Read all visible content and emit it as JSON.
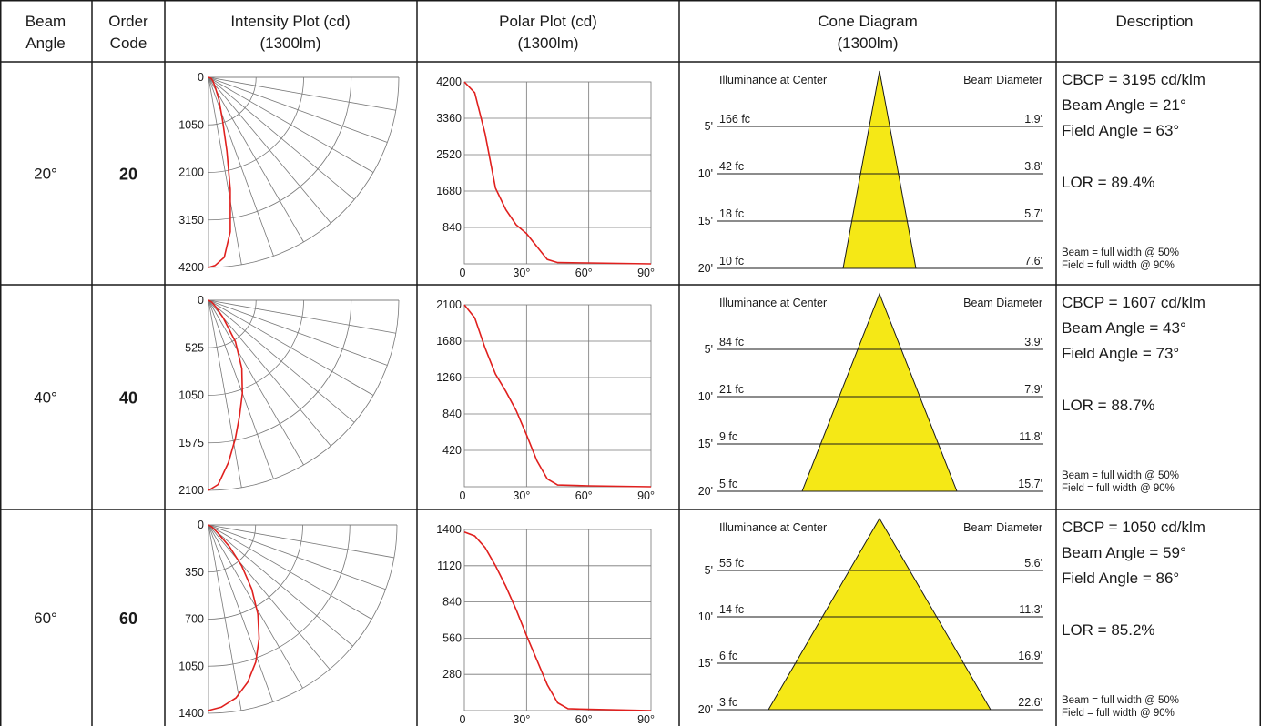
{
  "headers": {
    "beam_angle": [
      "Beam",
      "Angle"
    ],
    "order_code": [
      "Order",
      "Code"
    ],
    "intensity": [
      "Intensity Plot (cd)",
      "(1300lm)"
    ],
    "polar": [
      "Polar Plot (cd)",
      "(1300lm)"
    ],
    "cone": [
      "Cone Diagram",
      "(1300lm)"
    ],
    "description": [
      "Description"
    ]
  },
  "colors": {
    "curve": "#e0201e",
    "cone_fill": "#f5e816",
    "grid": "#777777",
    "border": "#1a1a1a"
  },
  "polar_x_ticks": [
    "0",
    "30°",
    "60°",
    "90°"
  ],
  "cone_headers": {
    "left": "Illuminance at Center",
    "right": "Beam Diameter"
  },
  "cone_distances": [
    "5'",
    "10'",
    "15'",
    "20'"
  ],
  "desc_notes": [
    "Beam = full width @ 50%",
    "Field = full width @ 90%"
  ],
  "rows": [
    {
      "beam_angle": "20°",
      "order_code": "20",
      "intensity_ticks": [
        "0",
        "1050",
        "2100",
        "3150",
        "4200"
      ],
      "polar_y_ticks": [
        "4200",
        "3360",
        "2520",
        "1680",
        "840"
      ],
      "cone_illuminance": [
        "166 fc",
        "42 fc",
        "18 fc",
        "10 fc"
      ],
      "cone_diameter": [
        "1.9'",
        "3.8'",
        "5.7'",
        "7.6'"
      ],
      "cbcp": "CBCP = 3195 cd/klm",
      "beam": "Beam Angle = 21°",
      "field": "Field Angle = 63°",
      "lor": "LOR = 89.4%"
    },
    {
      "beam_angle": "40°",
      "order_code": "40",
      "intensity_ticks": [
        "0",
        "525",
        "1050",
        "1575",
        "2100"
      ],
      "polar_y_ticks": [
        "2100",
        "1680",
        "1260",
        "840",
        "420"
      ],
      "cone_illuminance": [
        "84 fc",
        "21 fc",
        "9 fc",
        "5 fc"
      ],
      "cone_diameter": [
        "3.9'",
        "7.9'",
        "11.8'",
        "15.7'"
      ],
      "cbcp": "CBCP = 1607 cd/klm",
      "beam": "Beam Angle = 43°",
      "field": "Field Angle = 73°",
      "lor": "LOR = 88.7%"
    },
    {
      "beam_angle": "60°",
      "order_code": "60",
      "intensity_ticks": [
        "0",
        "350",
        "700",
        "1050",
        "1400"
      ],
      "polar_y_ticks": [
        "1400",
        "1120",
        "840",
        "560",
        "280"
      ],
      "cone_illuminance": [
        "55 fc",
        "14 fc",
        "6 fc",
        "3 fc"
      ],
      "cone_diameter": [
        "5.6'",
        "11.3'",
        "16.9'",
        "22.6'"
      ],
      "cbcp": "CBCP = 1050 cd/klm",
      "beam": "Beam Angle = 59°",
      "field": "Field Angle = 86°",
      "lor": "LOR = 85.2%"
    }
  ],
  "chart_data": [
    {
      "type": "line",
      "title": "Polar Plot (cd) — 20°",
      "x": [
        0,
        5,
        10,
        15,
        20,
        25,
        30,
        35,
        40,
        45,
        60,
        90
      ],
      "values": [
        4200,
        3950,
        3000,
        1750,
        1250,
        900,
        700,
        400,
        100,
        30,
        20,
        0
      ],
      "xlim": [
        0,
        90
      ],
      "ylim": [
        0,
        4200
      ]
    },
    {
      "type": "line",
      "title": "Polar Plot (cd) — 40°",
      "x": [
        0,
        5,
        10,
        15,
        20,
        25,
        30,
        35,
        40,
        45,
        60,
        90
      ],
      "values": [
        2100,
        1950,
        1600,
        1300,
        1100,
        880,
        600,
        300,
        90,
        20,
        10,
        0
      ],
      "xlim": [
        0,
        90
      ],
      "ylim": [
        0,
        2100
      ]
    },
    {
      "type": "line",
      "title": "Polar Plot (cd) — 60°",
      "x": [
        0,
        5,
        10,
        15,
        20,
        25,
        30,
        35,
        40,
        45,
        50,
        60,
        90
      ],
      "values": [
        1380,
        1350,
        1260,
        1120,
        960,
        780,
        580,
        390,
        200,
        60,
        15,
        10,
        0
      ],
      "xlim": [
        0,
        90
      ],
      "ylim": [
        0,
        1400
      ]
    }
  ]
}
